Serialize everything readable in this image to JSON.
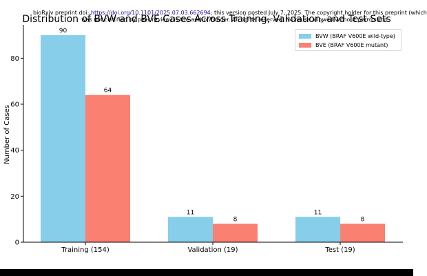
{
  "preprint_notice": {
    "prefix": "bioRxiv preprint doi: ",
    "doi": "https://doi.org/10.1101/2025.07.03.662694",
    "suffix": "; this version posted July 7, 2025. The copyright holder for this preprint (which",
    "line2": "was not certified by peer review) is the author/funder. All rights reserved. No reuse allowed without permission."
  },
  "chart_data": {
    "type": "bar",
    "title": "Distribution of BVW and BVE Cases Across Training, Validation, and Test Sets",
    "xlabel": "",
    "ylabel": "Number of Cases",
    "categories": [
      "Training (154)",
      "Validation (19)",
      "Test (19)"
    ],
    "series": [
      {
        "name": "BVW (BRAF V600E wild-type)",
        "values": [
          90,
          11,
          11
        ],
        "color": "#87ceeb"
      },
      {
        "name": "BVE (BRAF V600E mutant)",
        "values": [
          64,
          8,
          8
        ],
        "color": "#fa8072"
      }
    ],
    "ylim": [
      0,
      94.5
    ],
    "yticks": [
      0,
      20,
      40,
      60,
      80
    ],
    "grid": false,
    "legend_position": "top-right"
  }
}
